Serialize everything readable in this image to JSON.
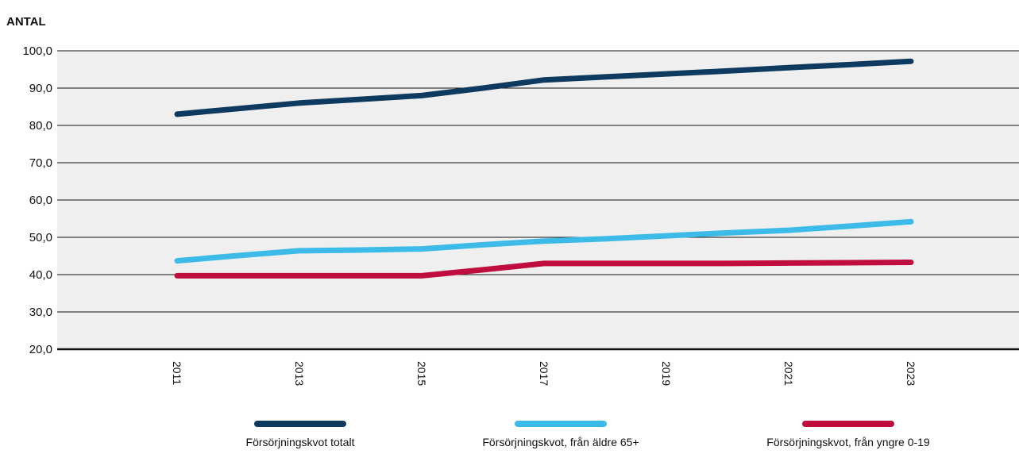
{
  "chart_data": {
    "type": "line",
    "ylabel": "ANTAL",
    "ylim": [
      20,
      100
    ],
    "yticks": [
      "20,0",
      "30,0",
      "40,0",
      "50,0",
      "60,0",
      "70,0",
      "80,0",
      "90,0",
      "100,0"
    ],
    "x": [
      2011,
      2012,
      2013,
      2014,
      2015,
      2016,
      2017,
      2018,
      2019,
      2020,
      2021,
      2022,
      2023
    ],
    "xticks": [
      "2011",
      "2013",
      "2015",
      "2017",
      "2019",
      "2021",
      "2023"
    ],
    "grid": true,
    "legend_position": "bottom",
    "plot_background": "#efefef",
    "series": [
      {
        "name": "Försörjningskvot totalt",
        "color": "#0d3a5e",
        "values": [
          83.0,
          84.5,
          86.0,
          87.0,
          88.0,
          90.0,
          92.2,
          93.0,
          93.8,
          94.6,
          95.5,
          96.3,
          97.2
        ]
      },
      {
        "name": "Försörjningskvot, från äldre 65+",
        "color": "#3dbbe8",
        "values": [
          43.7,
          45.1,
          46.4,
          46.6,
          46.9,
          48.0,
          49.0,
          49.6,
          50.4,
          51.2,
          51.9,
          53.0,
          54.2
        ]
      },
      {
        "name": "Försörjningskvot, från yngre 0-19",
        "color": "#bf0d3e",
        "values": [
          39.7,
          39.7,
          39.7,
          39.7,
          39.7,
          41.3,
          43.0,
          43.0,
          43.0,
          43.0,
          43.1,
          43.2,
          43.3
        ]
      }
    ]
  }
}
